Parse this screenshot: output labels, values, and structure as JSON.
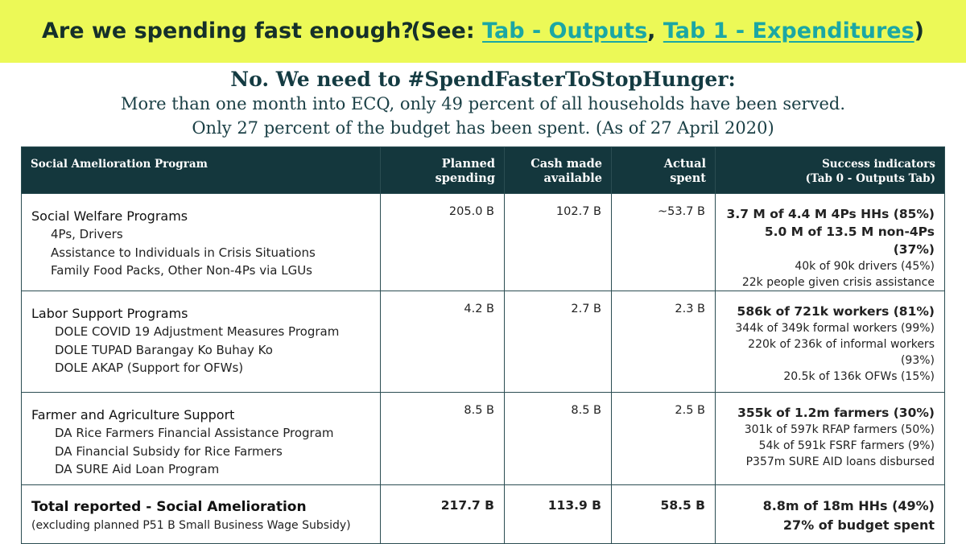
{
  "banner": {
    "question": "Are we spending fast enough?",
    "see_prefix": "(See: ",
    "link_outputs": "Tab - Outputs",
    "separator": ", ",
    "link_expenditures": "Tab 1 - Expenditures",
    "see_suffix": ")",
    "bg_color": "#ecf957",
    "link_color": "#1ba7a4"
  },
  "headline": "No. We need to #SpendFasterToStopHunger:",
  "subline1": "More than one month into ECQ, only 49 percent of all households have been served.",
  "subline2": "Only 27 percent of the budget has been spent. (As of 27 April 2020)",
  "table": {
    "header_color": "#14373d",
    "headers": {
      "program": "Social Amelioration Program",
      "planned": [
        "Planned",
        "spending"
      ],
      "cash": [
        "Cash made",
        "available"
      ],
      "actual": [
        "Actual",
        "spent"
      ],
      "success": [
        "Success indicators",
        "(Tab 0 - Outputs Tab)"
      ]
    },
    "rows": [
      {
        "title": "Social Welfare Programs",
        "items": [
          "4Ps, Drivers",
          "Assistance to Individuals in Crisis Situations",
          "Family Food Packs, Other Non-4Ps via LGUs"
        ],
        "planned": "205.0 B",
        "cash": "102.7 B",
        "actual": "~53.7 B",
        "success_bold": [
          "3.7 M of 4.4 M 4Ps HHs (85%)",
          "5.0 M of 13.5 M non-4Ps (37%)"
        ],
        "success_regular": [
          "40k of 90k drivers (45%)",
          "22k people given crisis assistance"
        ]
      },
      {
        "title": "Labor Support Programs",
        "items": [
          "DOLE COVID 19 Adjustment Measures Program",
          "DOLE TUPAD Barangay Ko Buhay Ko",
          "DOLE AKAP (Support for OFWs)"
        ],
        "planned": "4.2 B",
        "cash": "2.7 B",
        "actual": "2.3 B",
        "success_bold": [
          "586k of 721k workers (81%)"
        ],
        "success_regular": [
          "344k of 349k formal workers (99%)",
          "220k of 236k of informal workers  (93%)",
          "20.5k of 136k OFWs (15%)"
        ]
      },
      {
        "title": "Farmer and Agriculture Support",
        "items": [
          "DA Rice Farmers Financial Assistance Program",
          "DA Financial Subsidy for Rice Farmers",
          "DA SURE Aid Loan Program"
        ],
        "planned": "8.5 B",
        "cash": "8.5 B",
        "actual": "2.5 B",
        "success_bold": [
          "355k of 1.2m farmers (30%)"
        ],
        "success_regular": [
          "301k of 597k RFAP farmers  (50%)",
          "54k of 591k FSRF farmers (9%)",
          "P357m SURE AID loans disbursed"
        ]
      }
    ],
    "total": {
      "title": "Total reported - Social Amelioration",
      "note": "(excluding planned P51 B Small Business Wage Subsidy)",
      "planned": "217.7 B",
      "cash": "113.9 B",
      "actual": "58.5 B",
      "success": [
        "8.8m of 18m HHs (49%)",
        "27% of budget spent"
      ]
    }
  }
}
